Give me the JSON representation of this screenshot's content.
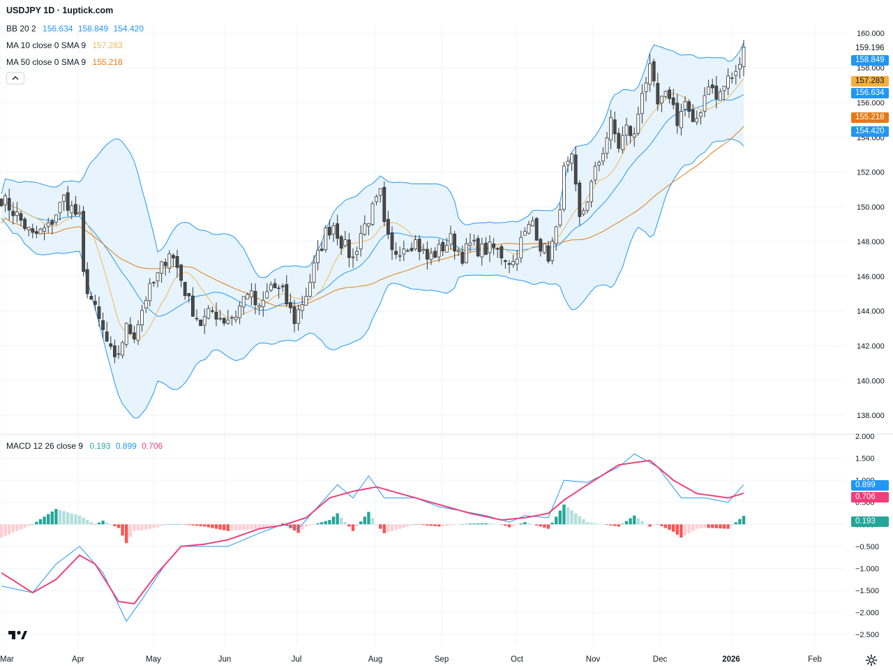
{
  "header": {
    "title": "USDJPY 1D · 1uptick.com",
    "bb": {
      "label": "BB 20 2",
      "v1": "156.634",
      "v2": "158.849",
      "v3": "154.420"
    },
    "ma10": {
      "label": "MA 10 close 0 SMA 9",
      "value": "157.283"
    },
    "ma50": {
      "label": "MA 50 close 0 SMA 9",
      "value": "155.218"
    },
    "macd": {
      "label": "MACD 12 26 close 9",
      "hist": "0.193",
      "macd": "0.899",
      "signal": "0.706"
    }
  },
  "price_tags": {
    "last": "159.196",
    "bb_upper": "158.849",
    "ma10": "157.283",
    "bb_mid": "156.634",
    "ma50": "155.218",
    "bb_lower": "154.420"
  },
  "macd_tags": {
    "macd": "0.899",
    "signal": "0.706",
    "hist": "0.193"
  },
  "colors": {
    "up": "#ffffff",
    "down": "#4a4a4a",
    "bb_line": "#2196f3",
    "bb_fill": "#e3f2fd",
    "ma10": "#f2b55a",
    "ma50": "#e07b16",
    "macd_line": "#2196f3",
    "signal_line": "#ef3f7a",
    "hist_up_strong": "#26a69a",
    "hist_up_weak": "#b2dfdb",
    "hist_down_strong": "#ff5252",
    "hist_down_weak": "#ffcdd2"
  },
  "icons": {
    "logo": "tradingview-logo-icon",
    "settings": "gear-icon",
    "collapse": "chevron-up-icon"
  },
  "chart_data": [
    {
      "type": "candlestick",
      "title": "USDJPY 1D",
      "x_labels": [
        "Mar",
        "Apr",
        "May",
        "Jun",
        "Jul",
        "Aug",
        "Sep",
        "Oct",
        "Nov",
        "Dec",
        "2026",
        "Feb"
      ],
      "y_ticks": [
        "160.000",
        "158.000",
        "156.000",
        "154.000",
        "152.000",
        "150.000",
        "148.000",
        "146.000",
        "144.000",
        "142.000",
        "140.000",
        "138.000"
      ],
      "ylim": [
        137,
        160.5
      ],
      "grid": true,
      "close_points": [
        [
          0,
          150.5
        ],
        [
          4,
          149.5
        ],
        [
          8,
          148.3
        ],
        [
          12,
          148.8
        ],
        [
          16,
          150.5
        ],
        [
          20,
          149.3
        ],
        [
          21,
          146.0
        ],
        [
          24,
          144.0
        ],
        [
          27,
          142.2
        ],
        [
          29,
          141.0
        ],
        [
          32,
          143.0
        ],
        [
          34,
          142.7
        ],
        [
          37,
          144.8
        ],
        [
          40,
          146.0
        ],
        [
          43,
          147.5
        ],
        [
          45,
          146.5
        ],
        [
          48,
          144.5
        ],
        [
          51,
          143.3
        ],
        [
          54,
          144.0
        ],
        [
          57,
          143.5
        ],
        [
          60,
          143.8
        ],
        [
          63,
          145.2
        ],
        [
          66,
          144.0
        ],
        [
          69,
          145.5
        ],
        [
          72,
          145.0
        ],
        [
          75,
          143.5
        ],
        [
          78,
          145.0
        ],
        [
          80,
          146.5
        ],
        [
          83,
          148.5
        ],
        [
          85,
          149.0
        ],
        [
          87,
          148.0
        ],
        [
          90,
          147.0
        ],
        [
          92,
          148.5
        ],
        [
          95,
          149.8
        ],
        [
          97,
          150.7
        ],
        [
          98,
          148.8
        ],
        [
          100,
          147.3
        ],
        [
          103,
          147.8
        ],
        [
          106,
          148.0
        ],
        [
          109,
          147.0
        ],
        [
          112,
          147.5
        ],
        [
          115,
          148.1
        ],
        [
          118,
          147.2
        ],
        [
          120,
          147.8
        ],
        [
          123,
          147.5
        ],
        [
          126,
          147.6
        ],
        [
          129,
          147.1
        ],
        [
          131,
          146.8
        ],
        [
          133,
          148.0
        ],
        [
          136,
          149.2
        ],
        [
          138,
          147.8
        ],
        [
          140,
          147.2
        ],
        [
          142,
          148.5
        ],
        [
          144,
          152.0
        ],
        [
          146,
          152.6
        ],
        [
          148,
          149.2
        ],
        [
          150,
          150.5
        ],
        [
          152,
          152.0
        ],
        [
          154,
          153.3
        ],
        [
          156,
          154.8
        ],
        [
          158,
          153.5
        ],
        [
          160,
          154.5
        ],
        [
          162,
          154.0
        ],
        [
          164,
          156.8
        ],
        [
          166,
          157.8
        ],
        [
          168,
          155.8
        ],
        [
          171,
          156.5
        ],
        [
          173,
          155.0
        ],
        [
          175,
          156.0
        ],
        [
          177,
          154.5
        ],
        [
          179,
          155.7
        ],
        [
          181,
          157.2
        ],
        [
          183,
          156.2
        ],
        [
          186,
          157.3
        ],
        [
          188,
          157.8
        ],
        [
          189,
          158.2
        ],
        [
          190,
          159.2
        ]
      ],
      "bollinger": {
        "upper_last": 158.849,
        "middle_last": 156.634,
        "lower_last": 154.42
      },
      "series": [
        {
          "name": "MA 10",
          "last": 157.283
        },
        {
          "name": "MA 50",
          "last": 155.218
        }
      ]
    },
    {
      "type": "line",
      "title": "MACD 12 26 close 9",
      "y_ticks": [
        "2.000",
        "1.500",
        "1.000",
        "0.500",
        "0.000",
        "-0.500",
        "-1.000",
        "-1.500",
        "-2.000",
        "-2.500"
      ],
      "ylim": [
        -2.75,
        2.0
      ],
      "series": [
        {
          "name": "MACD",
          "points": [
            [
              0,
              -1.4
            ],
            [
              8,
              -1.55
            ],
            [
              14,
              -0.9
            ],
            [
              20,
              -0.5
            ],
            [
              26,
              -1.1
            ],
            [
              32,
              -2.2
            ],
            [
              36,
              -1.7
            ],
            [
              42,
              -0.9
            ],
            [
              46,
              -0.5
            ],
            [
              52,
              -0.5
            ],
            [
              58,
              -0.5
            ],
            [
              66,
              -0.2
            ],
            [
              72,
              0.0
            ],
            [
              76,
              -0.1
            ],
            [
              82,
              0.5
            ],
            [
              86,
              0.9
            ],
            [
              90,
              0.6
            ],
            [
              94,
              1.1
            ],
            [
              98,
              0.6
            ],
            [
              106,
              0.6
            ],
            [
              112,
              0.4
            ],
            [
              118,
              0.3
            ],
            [
              124,
              0.2
            ],
            [
              130,
              0.05
            ],
            [
              134,
              0.2
            ],
            [
              140,
              0.15
            ],
            [
              144,
              1.0
            ],
            [
              150,
              0.95
            ],
            [
              158,
              1.3
            ],
            [
              162,
              1.6
            ],
            [
              168,
              1.3
            ],
            [
              174,
              0.6
            ],
            [
              180,
              0.6
            ],
            [
              186,
              0.5
            ],
            [
              190,
              0.9
            ]
          ]
        },
        {
          "name": "Signal",
          "points": [
            [
              0,
              -1.1
            ],
            [
              8,
              -1.55
            ],
            [
              14,
              -1.25
            ],
            [
              20,
              -0.7
            ],
            [
              24,
              -0.9
            ],
            [
              30,
              -1.75
            ],
            [
              34,
              -1.8
            ],
            [
              40,
              -1.1
            ],
            [
              46,
              -0.5
            ],
            [
              52,
              -0.45
            ],
            [
              58,
              -0.35
            ],
            [
              66,
              -0.1
            ],
            [
              72,
              -0.02
            ],
            [
              78,
              0.15
            ],
            [
              84,
              0.6
            ],
            [
              90,
              0.75
            ],
            [
              96,
              0.85
            ],
            [
              104,
              0.65
            ],
            [
              112,
              0.45
            ],
            [
              120,
              0.25
            ],
            [
              128,
              0.1
            ],
            [
              134,
              0.15
            ],
            [
              140,
              0.25
            ],
            [
              144,
              0.55
            ],
            [
              150,
              0.9
            ],
            [
              158,
              1.35
            ],
            [
              166,
              1.45
            ],
            [
              172,
              1.0
            ],
            [
              178,
              0.7
            ],
            [
              186,
              0.6
            ],
            [
              190,
              0.706
            ]
          ]
        }
      ],
      "histogram_last": 0.193
    }
  ]
}
